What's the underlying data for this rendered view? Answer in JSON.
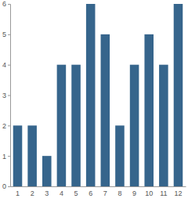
{
  "chart_data": {
    "type": "bar",
    "categories": [
      "1",
      "2",
      "3",
      "4",
      "5",
      "6",
      "7",
      "8",
      "9",
      "10",
      "11",
      "12"
    ],
    "values": [
      2,
      2,
      1,
      4,
      4,
      6,
      5,
      2,
      4,
      5,
      4,
      6
    ],
    "color": "#36658c",
    "ylim": [
      0,
      6
    ],
    "yticks": [
      0,
      1,
      2,
      3,
      4,
      5,
      6
    ],
    "grid": false
  }
}
